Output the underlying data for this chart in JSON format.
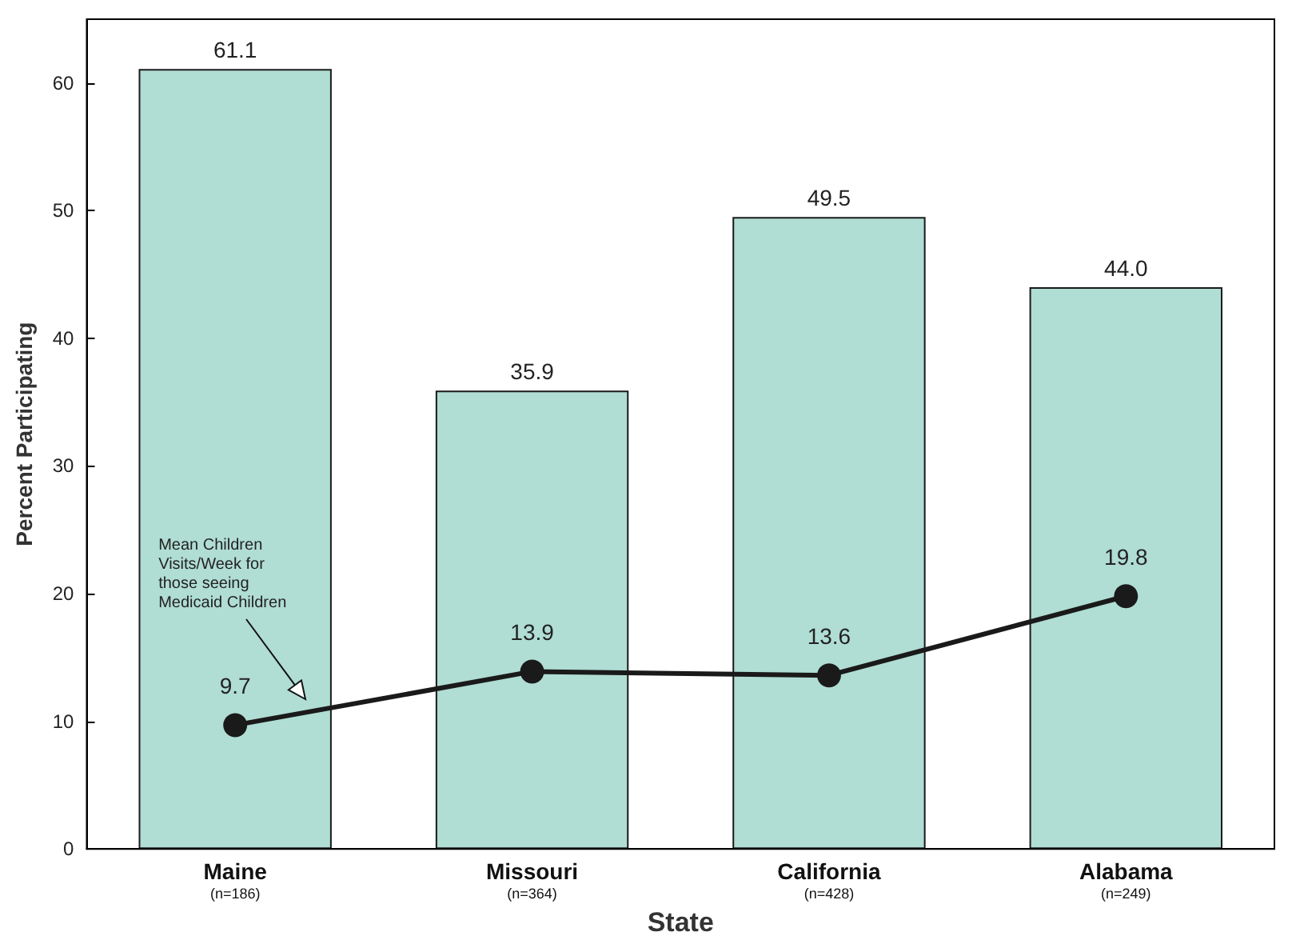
{
  "chart_data": {
    "type": "bar",
    "xlabel": "State",
    "ylabel": "Percent Participating",
    "categories": [
      "Maine\n(n=186)",
      "Missouri\n(n=364)",
      "California\n(n=428)",
      "Alabama\n(n=249)"
    ],
    "series": [
      {
        "color": "#b0ddd4",
        "values": [
          61.1,
          35.9,
          49.5,
          44.0
        ],
        "value_labels": [
          "61.1",
          "35.9",
          "49.5",
          "44.0"
        ]
      },
      {
        "type": "line",
        "color": "#1a1a1a",
        "values": [
          9.7,
          13.9,
          13.6,
          19.8
        ],
        "value_labels": [
          "9.7",
          "13.9",
          "13.6",
          "19.8"
        ]
      }
    ],
    "ylim": [
      0,
      65
    ],
    "yticks": [
      0,
      10,
      20,
      30,
      40,
      50,
      60
    ],
    "marker": "circle",
    "line_style": "solid",
    "annotations": [
      "Mean Children\nVisits/Week for\nthose seeing\nMedicaid Children"
    ]
  }
}
